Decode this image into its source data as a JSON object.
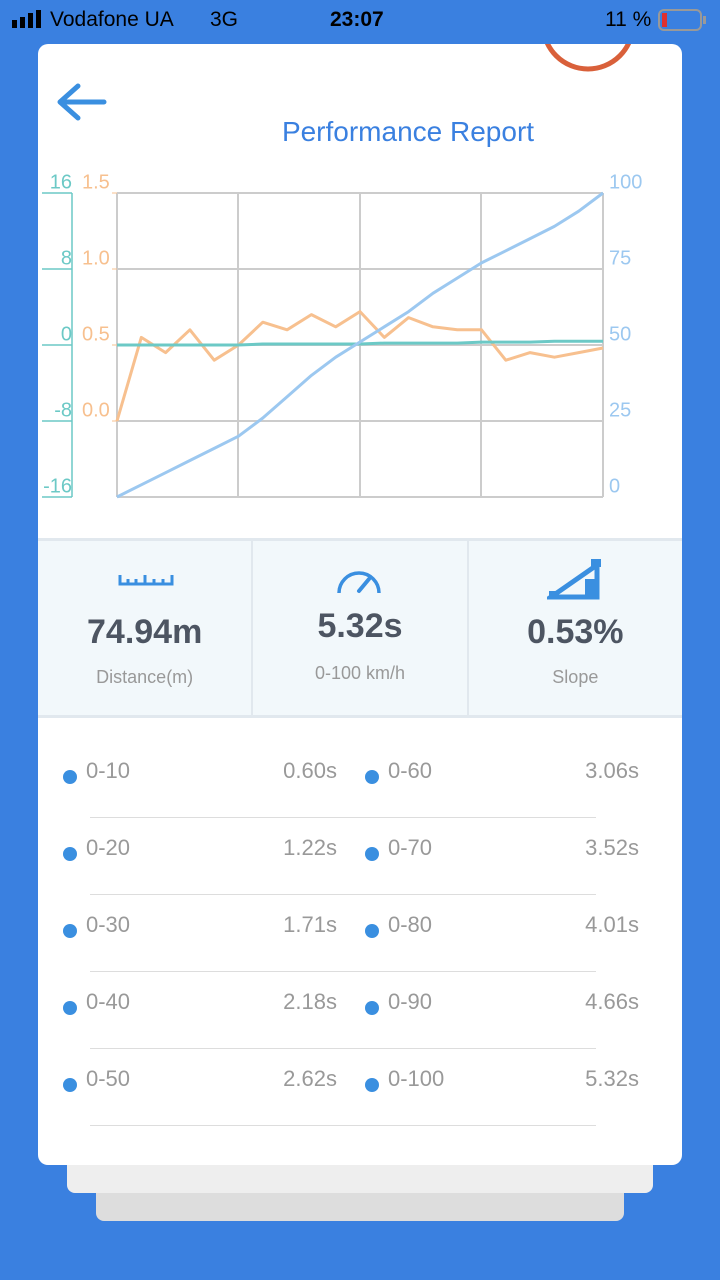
{
  "status_bar": {
    "carrier": "Vodafone UA",
    "network": "3G",
    "time": "23:07",
    "battery": "11 %"
  },
  "header": {
    "title": "Performance Report"
  },
  "chart_data": {
    "type": "line",
    "categories": [
      null,
      null,
      null,
      null,
      null,
      null,
      null,
      null,
      null,
      null,
      null,
      null,
      null,
      null,
      null,
      null,
      null,
      null,
      null,
      null,
      null
    ],
    "ylim": [
      -0.5,
      1.5
    ],
    "yticks": [
      {
        "value": 0,
        "label": "0.0"
      },
      0.5,
      {
        "value": 1,
        "label": "1.0"
      },
      1.5
    ],
    "y2lim": [
      0,
      100
    ],
    "y2ticks": [
      0,
      25,
      50,
      75,
      100
    ],
    "y3lim": [
      -16,
      16
    ],
    "y3ticks": [
      -16,
      -8,
      0,
      8,
      16
    ],
    "grid": true,
    "series": [
      {
        "color": "#f7c08f",
        "axis": "y",
        "values": [
          0.0,
          0.55,
          0.45,
          0.6,
          0.4,
          0.5,
          0.65,
          0.6,
          0.7,
          0.62,
          0.72,
          0.55,
          0.68,
          0.62,
          0.6,
          0.6,
          0.4,
          0.45,
          0.42,
          0.45,
          0.48
        ]
      },
      {
        "color": "#6cc9c6",
        "axis": "y3",
        "values": [
          0,
          0,
          0,
          0,
          0,
          0,
          0.1,
          0.1,
          0.1,
          0.1,
          0.1,
          0.2,
          0.2,
          0.2,
          0.2,
          0.3,
          0.3,
          0.3,
          0.4,
          0.4,
          0.4
        ]
      },
      {
        "color": "#9cc8f0",
        "axis": "y2",
        "values": [
          0,
          4,
          8,
          12,
          16,
          20,
          26,
          33,
          40,
          46,
          51,
          56,
          61,
          67,
          72,
          77,
          81,
          85,
          89,
          94,
          100
        ]
      }
    ]
  },
  "stats": [
    {
      "value": "74.94m",
      "label": "Distance(m)"
    },
    {
      "value": "5.32s",
      "label": "0-100 km/h"
    },
    {
      "value": "0.53%",
      "label": "Slope"
    }
  ],
  "splits": [
    {
      "range": "0-10",
      "time": "0.60s"
    },
    {
      "range": "0-60",
      "time": "3.06s"
    },
    {
      "range": "0-20",
      "time": "1.22s"
    },
    {
      "range": "0-70",
      "time": "3.52s"
    },
    {
      "range": "0-30",
      "time": "1.71s"
    },
    {
      "range": "0-80",
      "time": "4.01s"
    },
    {
      "range": "0-40",
      "time": "2.18s"
    },
    {
      "range": "0-90",
      "time": "4.66s"
    },
    {
      "range": "0-50",
      "time": "2.62s"
    },
    {
      "range": "0-100",
      "time": "5.32s"
    }
  ]
}
